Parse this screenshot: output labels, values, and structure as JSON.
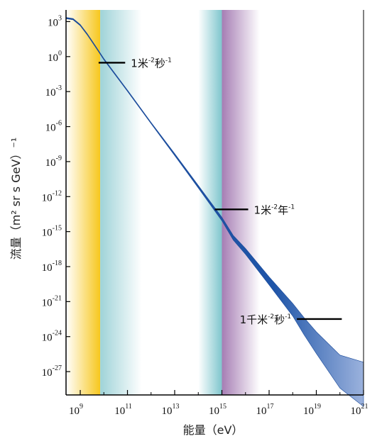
{
  "chart_data": {
    "type": "line",
    "xlabel": "能量（eV）",
    "ylabel": "流量（m² sr s GeV）⁻¹",
    "x_scale": "log",
    "y_scale": "log",
    "xlim": [
      250000000.0,
      1e+21
    ],
    "ylim": [
      1e-29,
      10000.0
    ],
    "x_ticks": [
      {
        "base": "10",
        "exp": "9",
        "value": 1000000000.0
      },
      {
        "base": "10",
        "exp": "11",
        "value": 100000000000.0
      },
      {
        "base": "10",
        "exp": "13",
        "value": 10000000000000.0
      },
      {
        "base": "10",
        "exp": "15",
        "value": 1000000000000000.0
      },
      {
        "base": "10",
        "exp": "17",
        "value": 1e+17
      },
      {
        "base": "10",
        "exp": "19",
        "value": 1e+19
      },
      {
        "base": "10",
        "exp": "21",
        "value": 1e+21
      }
    ],
    "y_ticks": [
      {
        "base": "10",
        "exp": "3",
        "value": 1000.0
      },
      {
        "base": "10",
        "exp": "0",
        "value": 1
      },
      {
        "base": "10",
        "exp": "-3",
        "value": 0.001
      },
      {
        "base": "10",
        "exp": "-6",
        "value": 1e-06
      },
      {
        "base": "10",
        "exp": "-9",
        "value": 1e-09
      },
      {
        "base": "10",
        "exp": "-12",
        "value": 1e-12
      },
      {
        "base": "10",
        "exp": "-15",
        "value": 1e-15
      },
      {
        "base": "10",
        "exp": "-18",
        "value": 1e-18
      },
      {
        "base": "10",
        "exp": "-21",
        "value": 1e-21
      },
      {
        "base": "10",
        "exp": "-24",
        "value": 1e-24
      },
      {
        "base": "10",
        "exp": "-27",
        "value": 1e-27
      }
    ],
    "series": [
      {
        "color": "#1a4a9a",
        "points": [
          {
            "x": 250000000.0,
            "y": 2000.0,
            "spread": 1
          },
          {
            "x": 500000000.0,
            "y": 1600.0,
            "spread": 1
          },
          {
            "x": 1000000000.0,
            "y": 500.0,
            "spread": 1
          },
          {
            "x": 2000000000.0,
            "y": 80.0,
            "spread": 1
          },
          {
            "x": 5000000000.0,
            "y": 5,
            "spread": 1
          },
          {
            "x": 10000000000.0,
            "y": 0.6,
            "spread": 1
          },
          {
            "x": 100000000000.0,
            "y": 0.0012,
            "spread": 1
          },
          {
            "x": 1000000000000.0,
            "y": 2e-06,
            "spread": 1
          },
          {
            "x": 10000000000000.0,
            "y": 4e-09,
            "spread": 1.3
          },
          {
            "x": 100000000000000.0,
            "y": 7e-12,
            "spread": 1.6
          },
          {
            "x": 1000000000000000.0,
            "y": 1.2e-14,
            "spread": 2
          },
          {
            "x": 3000000000000000.0,
            "y": 3e-16,
            "spread": 2.5
          },
          {
            "x": 1e+16,
            "y": 2e-17,
            "spread": 3
          },
          {
            "x": 1e+17,
            "y": 6e-20,
            "spread": 4
          },
          {
            "x": 1e+18,
            "y": 2e-22,
            "spread": 6
          },
          {
            "x": 3e+18,
            "y": 8e-24,
            "spread": 8
          },
          {
            "x": 1e+19,
            "y": 3e-25,
            "spread": 10
          },
          {
            "x": 1e+20,
            "y": 1e-27,
            "spread": 15
          },
          {
            "x": 1e+21,
            "y": 8e-29,
            "spread": 20
          }
        ]
      }
    ],
    "bands": [
      {
        "x_start": 250000000.0,
        "x_end": 7000000000.0,
        "color": "#f7c71d",
        "fade": "left"
      },
      {
        "x_start": 7000000000.0,
        "x_end": 400000000000.0,
        "color": "#9fd3d8",
        "fade": "right"
      },
      {
        "x_start": 100000000000000.0,
        "x_end": 1000000000000000.0,
        "color": "#7fc6cd",
        "fade": "left"
      },
      {
        "x_start": 1000000000000000.0,
        "x_end": 4e+16,
        "color": "#a67db4",
        "fade": "right"
      }
    ],
    "annotations": [
      {
        "text": "1米",
        "sup": "-2",
        "text2": "秒",
        "sup2": "-1",
        "x": 10000000000.0,
        "y": 0.3,
        "x_start": 6000000000.0,
        "x_end": 80000000000.0,
        "label_side": "right"
      },
      {
        "text": "1米",
        "sup": "-2",
        "text2": "年",
        "sup2": "-1",
        "x": 2000000000000000.0,
        "y": 8e-14,
        "x_start": 500000000000000.0,
        "x_end": 1.3e+16,
        "label_side": "right"
      },
      {
        "text": "1千米",
        "sup": "-2",
        "text2": "秒",
        "sup2": "-1",
        "x": 6e+18,
        "y": 3.2e-23,
        "x_start": 1.5e+18,
        "x_end": 1.2e+20,
        "label_side": "left"
      }
    ]
  }
}
